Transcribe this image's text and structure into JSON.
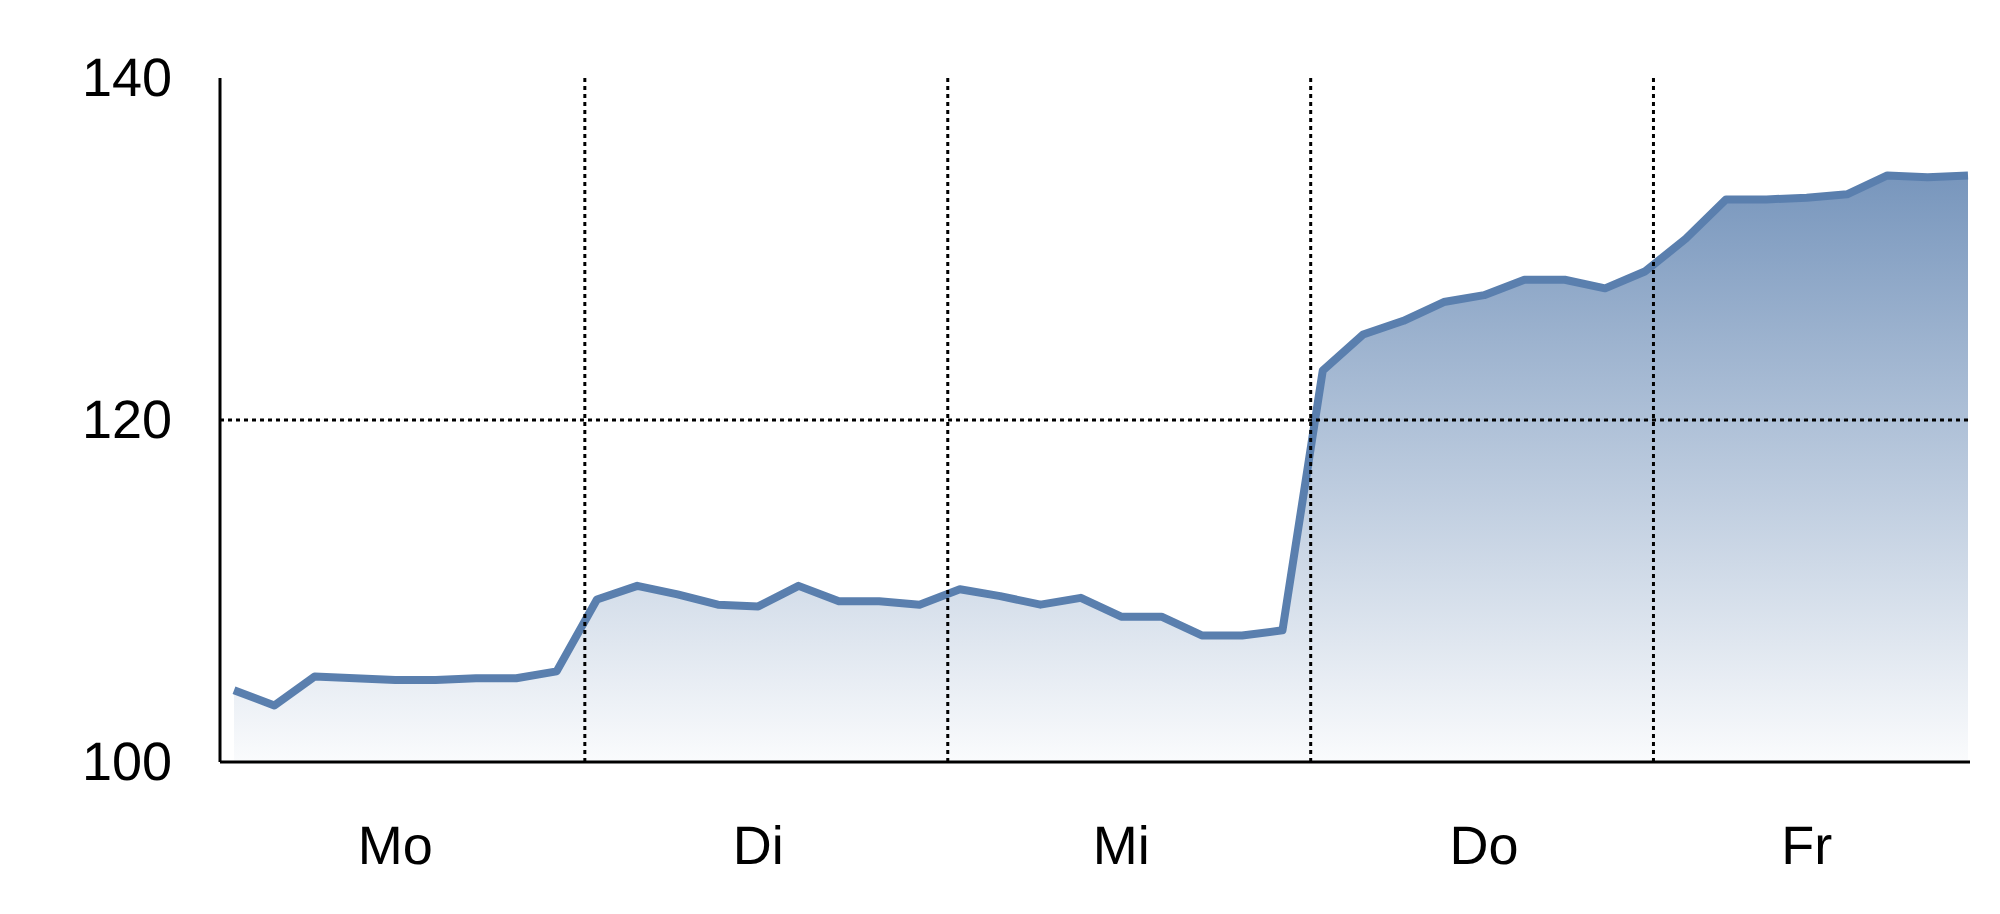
{
  "chart_data": {
    "type": "area",
    "categories": [
      null,
      null,
      null,
      null,
      "Mo",
      null,
      null,
      null,
      null,
      null,
      null,
      null,
      null,
      "Di",
      null,
      null,
      null,
      null,
      null,
      null,
      null,
      null,
      "Mi",
      null,
      null,
      null,
      null,
      null,
      null,
      null,
      null,
      "Do",
      null,
      null,
      null,
      null,
      null,
      null,
      null,
      "Fr",
      null,
      null,
      null,
      null
    ],
    "series": [
      {
        "color": "#5a7fae",
        "values": [
          104.2,
          103.3,
          105.0,
          104.9,
          104.8,
          104.8,
          104.9,
          104.9,
          105.3,
          109.5,
          110.3,
          109.8,
          109.2,
          109.1,
          110.3,
          109.4,
          109.4,
          109.2,
          110.1,
          109.7,
          109.2,
          109.6,
          108.5,
          108.5,
          107.4,
          107.4,
          107.7,
          122.9,
          125.0,
          125.8,
          126.9,
          127.3,
          128.2,
          128.2,
          127.7,
          128.7,
          130.6,
          132.9,
          132.9,
          133.0,
          133.2,
          134.3,
          134.2,
          134.3
        ]
      }
    ],
    "ylim": [
      100,
      140
    ],
    "yticks": [
      100,
      120,
      140
    ],
    "grid": false,
    "ref_lines": [
      {
        "axis": "y",
        "value": 120,
        "line_style": "dotted"
      }
    ]
  }
}
